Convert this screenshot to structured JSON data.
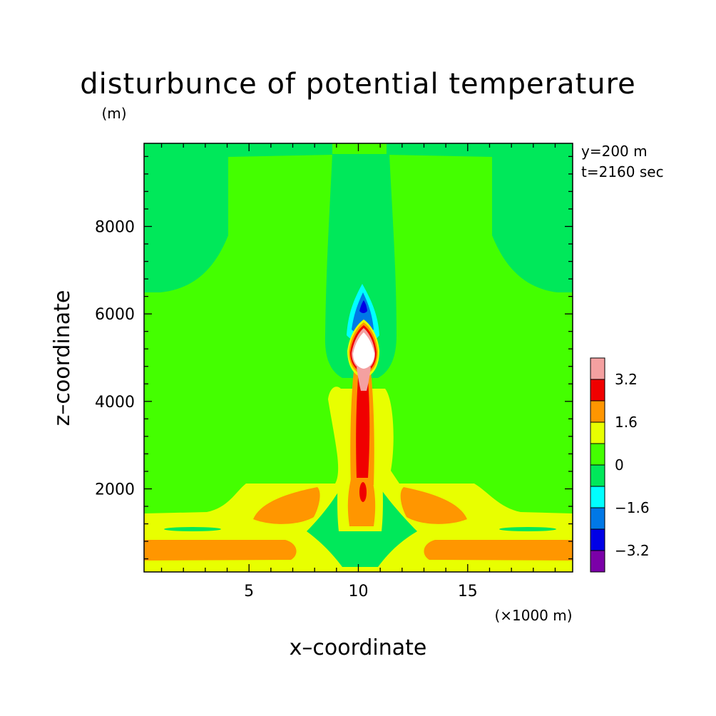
{
  "chart_data": {
    "type": "heatmap",
    "title": "disturbunce of potential temperature",
    "y_unit": "(m)",
    "x_unit": "(×1000 m)",
    "xlabel": "x–coordinate",
    "ylabel": "z–coordinate",
    "annotations": [
      "y=200 m",
      "t=2160 sec"
    ],
    "xlim": [
      0.2,
      19.8
    ],
    "ylim": [
      100,
      9900
    ],
    "x_ticks": [
      5,
      10,
      15
    ],
    "x_tick_labels": [
      "5",
      "10",
      "15"
    ],
    "y_ticks": [
      2000,
      4000,
      6000,
      8000
    ],
    "y_tick_labels": [
      "2000",
      "4000",
      "6000",
      "8000"
    ],
    "colorbar": {
      "levels": [
        -4.0,
        -3.2,
        -2.4,
        -1.6,
        -0.8,
        0,
        0.8,
        1.6,
        2.4,
        3.2,
        4.0
      ],
      "tick_labels": [
        "3.2",
        "1.6",
        "0",
        "−1.6",
        "−3.2"
      ],
      "colors": [
        "#7B00A8",
        "#0000E6",
        "#0078E6",
        "#00FFFF",
        "#00E85A",
        "#44FF00",
        "#E8FF00",
        "#FF9600",
        "#F00000",
        "#F4A0A0"
      ]
    },
    "regions": [
      {
        "level": "0 to 0.8",
        "color": "#44FF00",
        "description": "background"
      },
      {
        "level": "-0.8 to 0",
        "color": "#00E85A",
        "description": "upper side lobes, central column and low-level streaks"
      },
      {
        "level": "-1.6 to -0.8",
        "color": "#00FFFF",
        "description": "cap above thermal"
      },
      {
        "level": "-2.4 to -1.6",
        "color": "#0078E6",
        "description": "cap above thermal"
      },
      {
        "level": "-3.2 to -2.4",
        "color": "#0000E6",
        "description": "cap core"
      },
      {
        "level": "0.8 to 1.6",
        "color": "#E8FF00",
        "description": "low-level layers and plume sheath"
      },
      {
        "level": "1.6 to 2.4",
        "color": "#FF9600",
        "description": "near-surface bands and lobes"
      },
      {
        "level": "2.4 to 3.2",
        "color": "#F00000",
        "description": "plume core"
      },
      {
        "level": "3.2 to 4.0",
        "color": "#F4A0A0",
        "description": "thermal head rim"
      },
      {
        "level": "> 4.0",
        "color": "#FFFFFF",
        "description": "thermal head maximum"
      }
    ]
  }
}
